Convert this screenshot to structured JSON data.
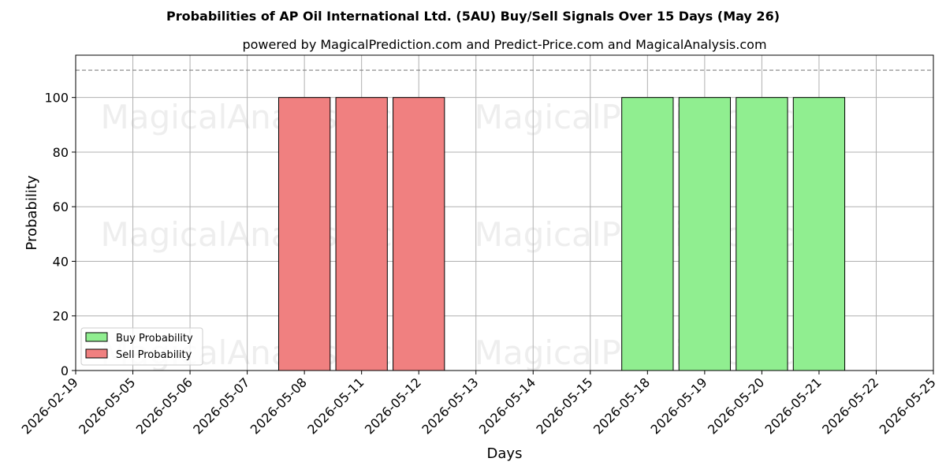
{
  "chart_data": {
    "type": "bar",
    "title": "Probabilities of AP Oil International Ltd. (5AU) Buy/Sell Signals Over 15 Days (May 26)",
    "subtitle": "powered by MagicalPrediction.com and Predict-Price.com and MagicalAnalysis.com",
    "xlabel": "Days",
    "ylabel": "Probability",
    "categories": [
      "2026-02-19",
      "2026-05-05",
      "2026-05-06",
      "2026-05-07",
      "2026-05-08",
      "2026-05-11",
      "2026-05-12",
      "2026-05-13",
      "2026-05-14",
      "2026-05-15",
      "2026-05-18",
      "2026-05-19",
      "2026-05-20",
      "2026-05-21",
      "2026-05-22",
      "2026-05-25"
    ],
    "ylim": [
      0,
      115.5
    ],
    "yticks": [
      0,
      20,
      40,
      60,
      80,
      100
    ],
    "reference_line": 110,
    "series": [
      {
        "name": "Buy Probability",
        "color": "#90ee90",
        "values": [
          0,
          0,
          0,
          0,
          0,
          0,
          0,
          0,
          0,
          0,
          100,
          100,
          100,
          100,
          0,
          0
        ]
      },
      {
        "name": "Sell Probability",
        "color": "#f08080",
        "values": [
          0,
          0,
          0,
          0,
          100,
          100,
          100,
          0,
          0,
          0,
          0,
          0,
          0,
          0,
          0,
          0
        ]
      }
    ],
    "grid": true,
    "legend_position": "lower-left",
    "watermarks": [
      "MagicalAnalysis.com",
      "MagicalPrediction.com"
    ]
  }
}
